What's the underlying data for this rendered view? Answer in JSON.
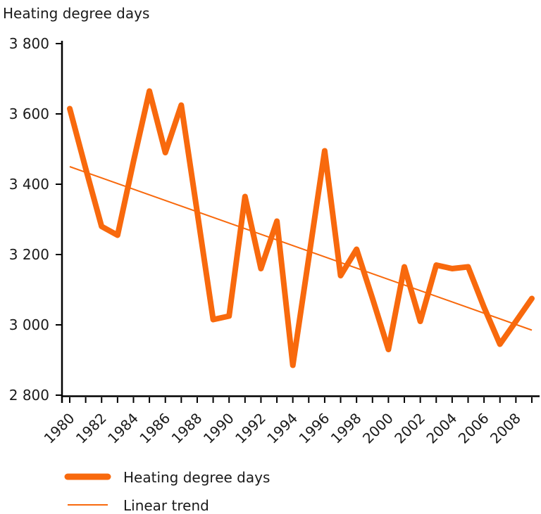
{
  "title": "Heating degree days",
  "colors": {
    "accent": "#F8690D",
    "text": "#1A1A1A",
    "axis": "#000000"
  },
  "legend": {
    "items": [
      {
        "label": "Heating degree days",
        "swatch": "thick-line"
      },
      {
        "label": "Linear trend",
        "swatch": "thin-line"
      }
    ]
  },
  "chart_data": {
    "type": "line",
    "title": "Heating degree days",
    "xlabel": "",
    "ylabel": "Heating degree days",
    "x": [
      1980,
      1981,
      1982,
      1983,
      1984,
      1985,
      1986,
      1987,
      1988,
      1989,
      1990,
      1991,
      1992,
      1993,
      1994,
      1995,
      1996,
      1997,
      1998,
      1999,
      2000,
      2001,
      2002,
      2003,
      2004,
      2005,
      2006,
      2007,
      2008,
      2009
    ],
    "series": [
      {
        "name": "Heating degree days",
        "style": "thick",
        "values": [
          3615,
          3445,
          3280,
          3255,
          3465,
          3665,
          3490,
          3625,
          3320,
          3015,
          3025,
          3365,
          3160,
          3295,
          2885,
          3190,
          3495,
          3140,
          3215,
          3075,
          2930,
          3165,
          3010,
          3170,
          3160,
          3165,
          3050,
          2945,
          3010,
          3075
        ]
      },
      {
        "name": "Linear trend",
        "style": "thin",
        "trend_endpoints": [
          3450,
          2985
        ]
      }
    ],
    "ylim": [
      2800,
      3800
    ],
    "ytick_step": 200,
    "ytick_labels": [
      "2 800",
      "3 000",
      "3 200",
      "3 400",
      "3 600",
      "3 800"
    ],
    "xtick_label_every": 2,
    "xtick_label_rotation": -45,
    "grid": false,
    "legend_position": "bottom-left"
  }
}
